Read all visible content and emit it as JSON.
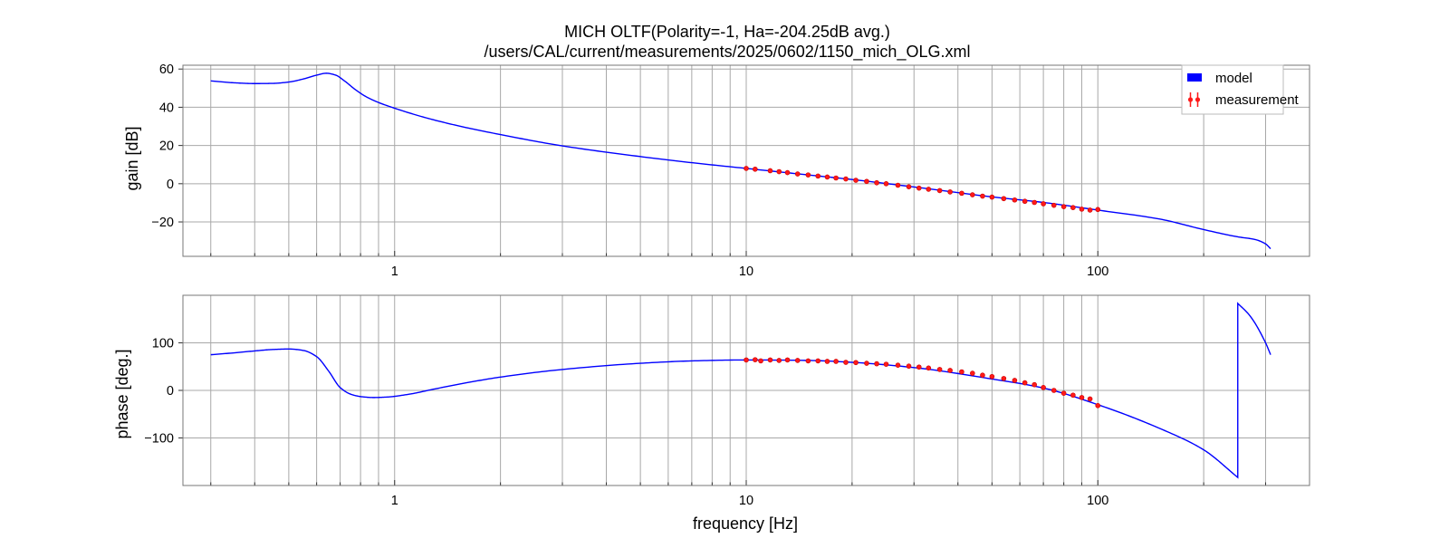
{
  "chart_data": {
    "type": "line",
    "title": "MICH OLTF(Polarity=-1,  Ha=-204.25dB avg.)",
    "subtitle": "/users/CAL/current/measurements/2025/0602/1150_mich_OLG.xml",
    "xlabel": "frequency [Hz]",
    "xscale": "log",
    "xlim": [
      0.25,
      400
    ],
    "x_tick_labels": [
      "1",
      "10",
      "100"
    ],
    "x_tick_values": [
      1,
      10,
      100
    ],
    "legend": {
      "placement": "top-right",
      "entries": [
        {
          "label": "model",
          "color": "#0000ff"
        },
        {
          "label": "measurement",
          "color": "#ff0000"
        }
      ]
    },
    "grid": true,
    "panels": [
      {
        "name": "gain",
        "ylabel": "gain [dB]",
        "ylim": [
          -38,
          62
        ],
        "y_ticks": [
          60,
          40,
          20,
          0,
          -20
        ],
        "y_tick_labels": [
          "60",
          "40",
          "20",
          "0",
          "−20"
        ],
        "model": {
          "x": [
            0.3,
            0.35,
            0.4,
            0.45,
            0.5,
            0.55,
            0.6,
            0.64,
            0.68,
            0.72,
            0.77,
            0.83,
            0.9,
            1.0,
            1.2,
            1.5,
            2.0,
            3.0,
            5.0,
            7.0,
            10.0,
            15.0,
            20.0,
            30.0,
            50.0,
            70.0,
            100.0,
            150.0,
            200.0,
            250.0,
            280.0,
            300.0,
            310.0
          ],
          "y": [
            53.8,
            52.8,
            52.4,
            52.5,
            53.2,
            54.8,
            56.8,
            57.8,
            56.8,
            53.8,
            49.5,
            45.5,
            42.5,
            39.5,
            35.0,
            30.5,
            25.7,
            19.8,
            14.2,
            11.0,
            8.0,
            4.6,
            2.2,
            -1.7,
            -6.9,
            -9.8,
            -13.8,
            -18.5,
            -24.0,
            -27.8,
            -29.2,
            -31.5,
            -34.0
          ]
        },
        "measurement": {
          "x": [
            10.0,
            10.6,
            11.7,
            12.4,
            13.1,
            14.0,
            15.0,
            16.0,
            17.0,
            18.0,
            19.2,
            20.5,
            22.0,
            23.5,
            25.0,
            27.0,
            29.0,
            31.0,
            33.0,
            35.5,
            38.0,
            41.0,
            44.0,
            47.0,
            50.0,
            54.0,
            58.0,
            62.0,
            66.0,
            70.0,
            75.0,
            80.0,
            85.0,
            90.0,
            95.0,
            100.0
          ],
          "y": [
            8.0,
            7.6,
            6.8,
            6.3,
            5.8,
            5.1,
            4.6,
            4.0,
            3.5,
            3.0,
            2.5,
            1.8,
            1.2,
            0.5,
            0.0,
            -0.8,
            -1.6,
            -2.3,
            -2.9,
            -3.6,
            -4.3,
            -5.0,
            -5.8,
            -6.5,
            -7.0,
            -7.8,
            -8.5,
            -9.2,
            -9.8,
            -10.5,
            -11.3,
            -12.0,
            -12.5,
            -13.3,
            -13.8,
            -13.5
          ]
        }
      },
      {
        "name": "phase",
        "ylabel": "phase [deg.]",
        "ylim": [
          -200,
          200
        ],
        "y_ticks": [
          100,
          0,
          -100
        ],
        "y_tick_labels": [
          "100",
          "0",
          "−100"
        ],
        "model": {
          "x": [
            0.3,
            0.35,
            0.4,
            0.45,
            0.5,
            0.55,
            0.6,
            0.65,
            0.7,
            0.75,
            0.8,
            0.87,
            0.95,
            1.1,
            1.3,
            1.6,
            2.0,
            3.0,
            5.0,
            7.0,
            10.0,
            15.0,
            20.0,
            30.0,
            50.0,
            70.0,
            100.0,
            150.0,
            200.0,
            250.0,
            250.0,
            270.0,
            300.0,
            310.0
          ],
          "y": [
            75.0,
            79.0,
            83.0,
            86.0,
            87.0,
            84.0,
            71.0,
            40.0,
            6.0,
            -8.0,
            -13.0,
            -15.0,
            -14.0,
            -8.0,
            3.0,
            16.0,
            28.0,
            44.0,
            57.0,
            62.0,
            64.0,
            63.0,
            59.0,
            48.0,
            24.0,
            5.0,
            -30.0,
            -80.0,
            -125.0,
            -183.0,
            183.0,
            158.0,
            100.0,
            75.0
          ]
        },
        "measurement": {
          "x": [
            10.0,
            10.6,
            11.0,
            11.7,
            12.4,
            13.1,
            14.0,
            15.0,
            16.0,
            17.0,
            18.0,
            19.2,
            20.5,
            22.0,
            23.5,
            25.0,
            27.0,
            29.0,
            31.0,
            33.0,
            35.5,
            38.0,
            41.0,
            44.0,
            47.0,
            50.0,
            54.0,
            58.0,
            62.0,
            66.0,
            70.0,
            75.0,
            80.0,
            85.0,
            90.0,
            95.0,
            100.0
          ],
          "y": [
            64.0,
            64.5,
            62.0,
            64.0,
            63.0,
            64.0,
            63.0,
            62.0,
            62.0,
            61.0,
            61.0,
            59.0,
            58.5,
            57.0,
            56.0,
            55.0,
            53.0,
            51.0,
            49.0,
            47.0,
            44.0,
            42.0,
            39.0,
            36.0,
            32.0,
            29.0,
            25.0,
            21.0,
            16.0,
            12.0,
            6.0,
            0.0,
            -6.0,
            -10.0,
            -15.0,
            -18.0,
            -32.0
          ]
        }
      }
    ]
  }
}
